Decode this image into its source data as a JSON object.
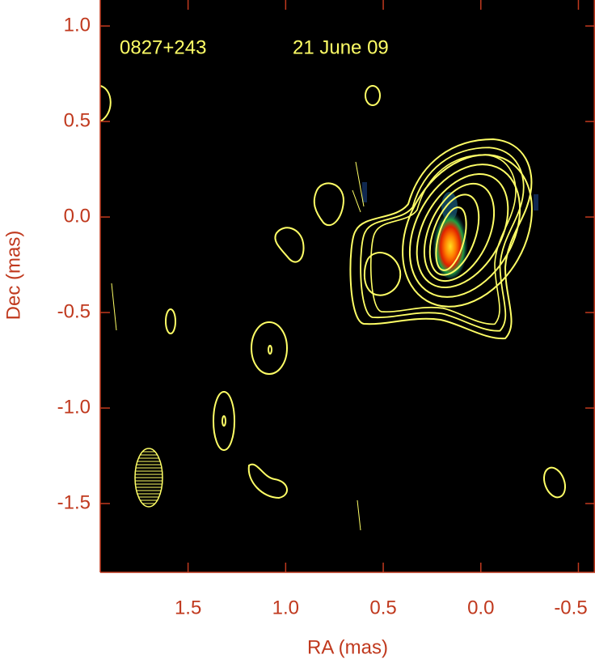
{
  "chart_data": {
    "type": "contour",
    "title": "0827+243",
    "subtitle": "21 June 09",
    "xlabel": "RA (mas)",
    "ylabel": "Dec (mas)",
    "xlim": [
      1.95,
      -0.585
    ],
    "ylim": [
      -1.86,
      1.136
    ],
    "xticks": [
      1.5,
      {
        "value": 1,
        "label": "1.0"
      },
      0.5,
      {
        "value": 0,
        "label": "0.0"
      },
      -0.5
    ],
    "yticks": [
      {
        "value": 1,
        "label": "1.0"
      },
      0.5,
      {
        "value": 0,
        "label": "0.0"
      },
      -0.5,
      {
        "value": -1,
        "label": "-1.0"
      },
      -1.5
    ],
    "contour_color": "#ffff66",
    "axis_color": "#c0391e",
    "background": "#000000"
  }
}
